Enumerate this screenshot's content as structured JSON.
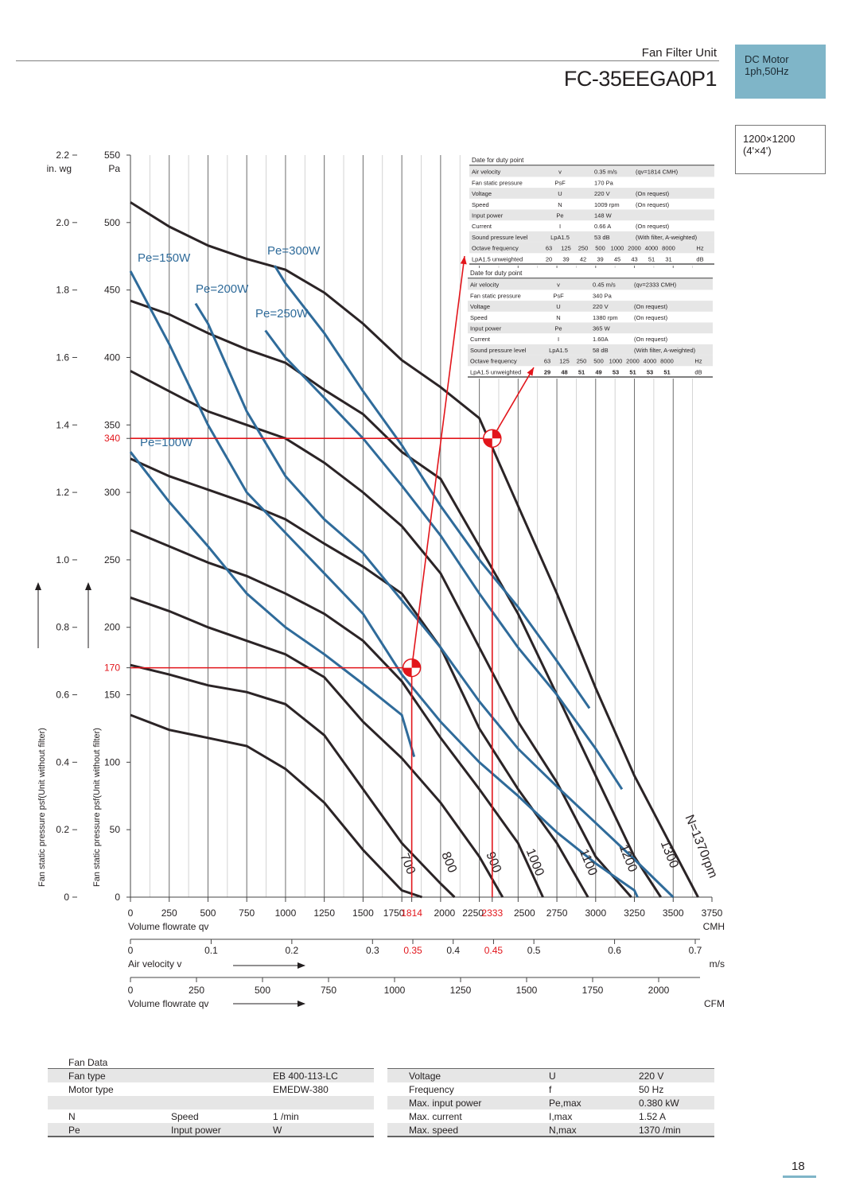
{
  "header": {
    "doc_title": "Fan Filter Unit",
    "model": "FC-35EEGA0P1",
    "motor_lines": [
      "DC Motor",
      "1ph,50Hz"
    ],
    "size_lines": [
      "1200×1200",
      "(4'×4')"
    ]
  },
  "chart_data": {
    "type": "line",
    "xlim": [
      0,
      3750
    ],
    "ylim": [
      0,
      550
    ],
    "x_ticks": [
      "0",
      "250",
      "500",
      "750",
      "1000",
      "1250",
      "1500",
      "1750",
      "1814",
      "2000",
      "2250",
      "2333",
      "2500",
      "2750",
      "3000",
      "3250",
      "3500",
      "3750"
    ],
    "x_unit": "CMH",
    "xlabel": "Volume flowrate qv",
    "y_ticks": [
      "0",
      "50",
      "100",
      "150",
      "170",
      "200",
      "250",
      "300",
      "340",
      "350",
      "400",
      "450",
      "500",
      "550"
    ],
    "y_unit": "Pa",
    "ylabel": "Fan static pressure psf(Unit without filter)",
    "y2_ticks": [
      "0",
      "0.2",
      "0.4",
      "0.6",
      "0.8",
      "1.0",
      "1.2",
      "1.4",
      "1.6",
      "1.8",
      "2.0",
      "2.2"
    ],
    "y2_unit": "in. wg",
    "y2label": "Fan static pressure psf(Unit without filter)",
    "velocity_axis": {
      "label": "Air velocity v",
      "unit": "m/s",
      "ticks": [
        "0",
        "0.1",
        "0.2",
        "0.3",
        "0.35",
        "0.4",
        "0.45",
        "0.5",
        "0.6",
        "0.7"
      ],
      "highlight": [
        "0.35",
        "0.45"
      ]
    },
    "cfm_axis": {
      "label": "Volume flowrate qv",
      "unit": "CFM",
      "ticks": [
        "0",
        "250",
        "500",
        "750",
        "1000",
        "1250",
        "1500",
        "1750",
        "2000"
      ]
    },
    "grid": true,
    "speed_curves": [
      {
        "name": "700",
        "points": [
          [
            0,
            135
          ],
          [
            250,
            124
          ],
          [
            500,
            118
          ],
          [
            750,
            112
          ],
          [
            1000,
            95
          ],
          [
            1250,
            70
          ],
          [
            1500,
            35
          ],
          [
            1750,
            5
          ],
          [
            1880,
            0
          ]
        ]
      },
      {
        "name": "800",
        "points": [
          [
            0,
            172
          ],
          [
            250,
            165
          ],
          [
            500,
            157
          ],
          [
            750,
            152
          ],
          [
            1000,
            143
          ],
          [
            1250,
            120
          ],
          [
            1500,
            80
          ],
          [
            1750,
            40
          ],
          [
            2000,
            10
          ],
          [
            2090,
            0
          ]
        ]
      },
      {
        "name": "900",
        "points": [
          [
            0,
            222
          ],
          [
            250,
            212
          ],
          [
            500,
            200
          ],
          [
            750,
            190
          ],
          [
            1000,
            180
          ],
          [
            1250,
            163
          ],
          [
            1500,
            130
          ],
          [
            1750,
            103
          ],
          [
            2000,
            70
          ],
          [
            2250,
            30
          ],
          [
            2400,
            0
          ]
        ]
      },
      {
        "name": "1000",
        "points": [
          [
            0,
            272
          ],
          [
            250,
            260
          ],
          [
            500,
            248
          ],
          [
            750,
            238
          ],
          [
            1000,
            225
          ],
          [
            1250,
            210
          ],
          [
            1500,
            190
          ],
          [
            1750,
            160
          ],
          [
            2000,
            118
          ],
          [
            2250,
            80
          ],
          [
            2500,
            40
          ],
          [
            2660,
            0
          ]
        ]
      },
      {
        "name": "1100",
        "points": [
          [
            0,
            325
          ],
          [
            250,
            312
          ],
          [
            500,
            302
          ],
          [
            750,
            292
          ],
          [
            1000,
            280
          ],
          [
            1250,
            262
          ],
          [
            1500,
            245
          ],
          [
            1750,
            225
          ],
          [
            2000,
            185
          ],
          [
            2250,
            125
          ],
          [
            2500,
            80
          ],
          [
            2750,
            40
          ],
          [
            2950,
            0
          ]
        ]
      },
      {
        "name": "1200",
        "points": [
          [
            0,
            390
          ],
          [
            250,
            375
          ],
          [
            500,
            360
          ],
          [
            750,
            350
          ],
          [
            1000,
            340
          ],
          [
            1250,
            322
          ],
          [
            1500,
            300
          ],
          [
            1750,
            275
          ],
          [
            2000,
            240
          ],
          [
            2250,
            185
          ],
          [
            2500,
            130
          ],
          [
            2750,
            85
          ],
          [
            3000,
            30
          ],
          [
            3230,
            0
          ]
        ]
      },
      {
        "name": "1300",
        "points": [
          [
            0,
            442
          ],
          [
            250,
            432
          ],
          [
            500,
            418
          ],
          [
            750,
            406
          ],
          [
            1000,
            396
          ],
          [
            1250,
            376
          ],
          [
            1500,
            358
          ],
          [
            1750,
            330
          ],
          [
            2000,
            310
          ],
          [
            2250,
            260
          ],
          [
            2500,
            210
          ],
          [
            2750,
            150
          ],
          [
            3000,
            90
          ],
          [
            3250,
            30
          ],
          [
            3420,
            0
          ]
        ]
      },
      {
        "name": "N=1370rpm",
        "points": [
          [
            0,
            515
          ],
          [
            250,
            497
          ],
          [
            500,
            483
          ],
          [
            750,
            473
          ],
          [
            1000,
            465
          ],
          [
            1250,
            448
          ],
          [
            1500,
            425
          ],
          [
            1750,
            398
          ],
          [
            2000,
            378
          ],
          [
            2250,
            355
          ],
          [
            2500,
            290
          ],
          [
            2750,
            225
          ],
          [
            3000,
            155
          ],
          [
            3250,
            90
          ],
          [
            3500,
            35
          ],
          [
            3660,
            0
          ]
        ]
      }
    ],
    "power_curves": [
      {
        "name": "Pe=100W",
        "points": [
          [
            0,
            330
          ],
          [
            250,
            293
          ],
          [
            500,
            260
          ],
          [
            750,
            225
          ],
          [
            1000,
            200
          ],
          [
            1250,
            180
          ],
          [
            1500,
            158
          ],
          [
            1750,
            135
          ],
          [
            1830,
            104
          ]
        ]
      },
      {
        "name": "Pe=150W",
        "points": [
          [
            0,
            464
          ],
          [
            250,
            410
          ],
          [
            500,
            350
          ],
          [
            750,
            300
          ],
          [
            1000,
            270
          ],
          [
            1250,
            240
          ],
          [
            1500,
            210
          ],
          [
            1750,
            165
          ],
          [
            2000,
            130
          ],
          [
            2250,
            100
          ],
          [
            2500,
            75
          ],
          [
            2750,
            48
          ],
          [
            3000,
            25
          ],
          [
            3250,
            5
          ],
          [
            3270,
            0
          ]
        ]
      },
      {
        "name": "Pe=200W",
        "points": [
          [
            420,
            440
          ],
          [
            500,
            425
          ],
          [
            750,
            360
          ],
          [
            1000,
            312
          ],
          [
            1250,
            280
          ],
          [
            1500,
            255
          ],
          [
            1750,
            220
          ],
          [
            2000,
            185
          ],
          [
            2250,
            145
          ],
          [
            2500,
            110
          ],
          [
            2750,
            82
          ],
          [
            3000,
            55
          ],
          [
            3250,
            28
          ],
          [
            3500,
            0
          ]
        ]
      },
      {
        "name": "Pe=250W",
        "points": [
          [
            870,
            420
          ],
          [
            1000,
            400
          ],
          [
            1250,
            370
          ],
          [
            1500,
            340
          ],
          [
            1750,
            305
          ],
          [
            2000,
            268
          ],
          [
            2250,
            225
          ],
          [
            2500,
            185
          ],
          [
            2750,
            150
          ],
          [
            3000,
            110
          ],
          [
            3170,
            80
          ]
        ]
      },
      {
        "name": "Pe=300W",
        "points": [
          [
            930,
            468
          ],
          [
            1000,
            455
          ],
          [
            1250,
            418
          ],
          [
            1500,
            375
          ],
          [
            1750,
            335
          ],
          [
            2000,
            290
          ],
          [
            2250,
            250
          ],
          [
            2500,
            215
          ],
          [
            2750,
            175
          ],
          [
            2960,
            140
          ]
        ]
      }
    ],
    "duty_points": [
      {
        "x": 1814,
        "y": 170
      },
      {
        "x": 2333,
        "y": 340
      }
    ],
    "duty_tables": [
      {
        "title": "Date for  duty point",
        "rows": [
          [
            "Air velocity",
            "v",
            "0.35 m/s",
            "(qv=1814  CMH)"
          ],
          [
            "Fan static pressure",
            "PsF",
            "170 Pa",
            ""
          ],
          [
            "Voltage",
            "U",
            "220 V",
            "(On request)"
          ],
          [
            "Speed",
            "N",
            "1009 rpm",
            "(On request)"
          ],
          [
            "Input power",
            "Pe",
            "148 W",
            ""
          ],
          [
            "Current",
            "I",
            "0.66 A",
            "(On request)"
          ],
          [
            "Sound pressure level",
            "LpA1.5",
            "53 dB",
            "(With filter, A-weighted)"
          ]
        ],
        "octave_label": "Octave frequency",
        "octave": [
          "63",
          "125",
          "250",
          "500",
          "1000",
          "2000",
          "4000",
          "8000"
        ],
        "octave_unit": "Hz",
        "lpa_label": "LpA1.5 unweighted",
        "lpa": [
          "20",
          "39",
          "42",
          "39",
          "45",
          "43",
          "51",
          "31"
        ],
        "lpa_unit": "dB"
      },
      {
        "title": "Date for  duty point",
        "rows": [
          [
            "Air velocity",
            "v",
            "0.45 m/s",
            "(qv=2333  CMH)"
          ],
          [
            "Fan static pressure",
            "PsF",
            "340 Pa",
            ""
          ],
          [
            "Voltage",
            "U",
            "220 V",
            "(On request)"
          ],
          [
            "Speed",
            "N",
            "1380 rpm",
            "(On request)"
          ],
          [
            "Input power",
            "Pe",
            "365 W",
            ""
          ],
          [
            "Current",
            "I",
            "1.60A",
            "(On request)"
          ],
          [
            "Sound pressure level",
            "LpA1.5",
            "58 dB",
            "(With filter, A-weighted)"
          ]
        ],
        "octave_label": "Octave frequency",
        "octave": [
          "63",
          "125",
          "250",
          "500",
          "1000",
          "2000",
          "4000",
          "8000"
        ],
        "octave_unit": "Hz",
        "lpa_label": "LpA1.5 unweighted",
        "lpa": [
          "29",
          "48",
          "51",
          "49",
          "53",
          "51",
          "53",
          "51"
        ],
        "lpa_unit": "dB"
      }
    ]
  },
  "fan_data": {
    "title": "Fan Data",
    "left_rows": [
      [
        "Fan type",
        "",
        "EB 400-113-LC"
      ],
      [
        "Motor type",
        "",
        "EMEDW-380"
      ],
      [
        "",
        "",
        ""
      ],
      [
        "N",
        "Speed",
        "1 /min"
      ],
      [
        "Pe",
        "Input power",
        "W"
      ]
    ],
    "right_rows": [
      [
        "Voltage",
        "U",
        "220 V"
      ],
      [
        "Frequency",
        "f",
        "50 Hz"
      ],
      [
        "Max. input power",
        "Pe,max",
        "0.380 kW"
      ],
      [
        "Max. current",
        "I,max",
        "1.52 A"
      ],
      [
        "Max. speed",
        "N,max",
        "1370 /min"
      ]
    ]
  },
  "page_number": "18",
  "colors": {
    "speed": "#2b2426",
    "power": "#2f6b9a",
    "duty": "#e2151b",
    "accent": "#7fb5c8",
    "stripe": "#e6e6e6"
  }
}
